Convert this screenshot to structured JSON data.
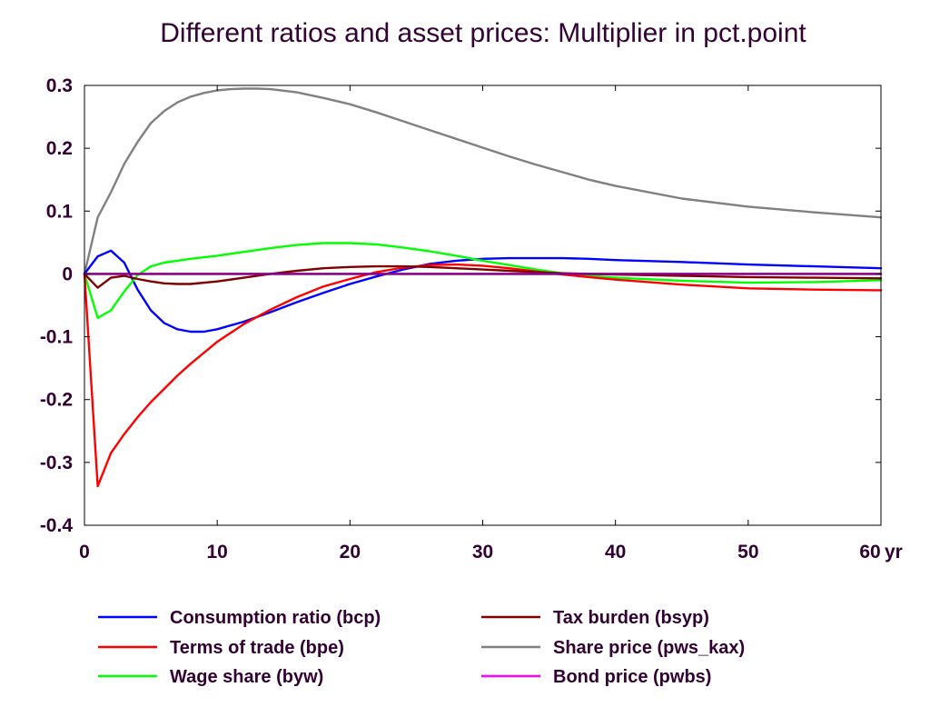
{
  "chart_data": {
    "type": "line",
    "title": "Different ratios and asset prices: Multiplier in pct.point",
    "xlabel": "",
    "ylabel": "",
    "x_unit_label": "yr",
    "xlim": [
      0,
      60
    ],
    "ylim": [
      -0.4,
      0.3
    ],
    "x_ticks": [
      0,
      10,
      20,
      30,
      40,
      50,
      60
    ],
    "x_tick_labels": [
      "0",
      "10",
      "20",
      "30",
      "40",
      "50",
      "60"
    ],
    "y_ticks": [
      0.3,
      0.2,
      0.1,
      0,
      -0.1,
      -0.2,
      -0.3,
      -0.4
    ],
    "y_tick_labels": [
      "0.3",
      "0.2",
      "0.1",
      "0",
      "-0.1",
      "-0.2",
      "-0.3",
      "-0.4"
    ],
    "grid": false,
    "legend_position": "bottom",
    "series": [
      {
        "name": "Consumption ratio (bcp)",
        "color": "#0000ff",
        "x": [
          0,
          1,
          2,
          3,
          4,
          5,
          6,
          7,
          8,
          9,
          10,
          12,
          14,
          16,
          18,
          20,
          22,
          24,
          26,
          28,
          30,
          32,
          34,
          36,
          38,
          40,
          45,
          50,
          55,
          60
        ],
        "y": [
          0,
          0.028,
          0.037,
          0.018,
          -0.025,
          -0.058,
          -0.078,
          -0.088,
          -0.092,
          -0.092,
          -0.088,
          -0.076,
          -0.061,
          -0.045,
          -0.03,
          -0.016,
          -0.004,
          0.007,
          0.016,
          0.021,
          0.024,
          0.025,
          0.025,
          0.025,
          0.024,
          0.022,
          0.019,
          0.015,
          0.012,
          0.009
        ]
      },
      {
        "name": "Terms of trade (bpe)",
        "color": "#ff0000",
        "x": [
          0,
          1,
          2,
          3,
          4,
          5,
          6,
          7,
          8,
          10,
          12,
          14,
          16,
          18,
          20,
          22,
          24,
          26,
          28,
          30,
          32,
          34,
          36,
          38,
          40,
          45,
          50,
          55,
          60
        ],
        "y": [
          0,
          -0.338,
          -0.285,
          -0.255,
          -0.228,
          -0.204,
          -0.183,
          -0.162,
          -0.143,
          -0.108,
          -0.08,
          -0.057,
          -0.037,
          -0.02,
          -0.008,
          0.003,
          0.01,
          0.014,
          0.015,
          0.013,
          0.009,
          0.004,
          -0.001,
          -0.005,
          -0.009,
          -0.017,
          -0.023,
          -0.025,
          -0.026
        ]
      },
      {
        "name": "Wage share (byw)",
        "color": "#00ff00",
        "x": [
          0,
          1,
          2,
          3,
          4,
          5,
          6,
          7,
          8,
          10,
          12,
          14,
          16,
          18,
          20,
          22,
          24,
          26,
          28,
          30,
          32,
          34,
          36,
          38,
          40,
          45,
          50,
          55,
          60
        ],
        "y": [
          0,
          -0.07,
          -0.058,
          -0.028,
          -0.002,
          0.012,
          0.018,
          0.021,
          0.024,
          0.029,
          0.035,
          0.041,
          0.046,
          0.049,
          0.049,
          0.047,
          0.042,
          0.036,
          0.029,
          0.021,
          0.014,
          0.007,
          0.001,
          -0.003,
          -0.006,
          -0.011,
          -0.014,
          -0.013,
          -0.01
        ]
      },
      {
        "name": "Tax burden (bsyp)",
        "color": "#800000",
        "x": [
          0,
          1,
          2,
          3,
          4,
          5,
          6,
          7,
          8,
          10,
          12,
          14,
          16,
          18,
          20,
          22,
          24,
          26,
          28,
          30,
          32,
          34,
          36,
          38,
          40,
          45,
          50,
          55,
          60
        ],
        "y": [
          0,
          -0.022,
          -0.006,
          -0.003,
          -0.008,
          -0.012,
          -0.015,
          -0.016,
          -0.016,
          -0.012,
          -0.006,
          0,
          0.005,
          0.009,
          0.011,
          0.012,
          0.012,
          0.011,
          0.009,
          0.007,
          0.005,
          0.003,
          0.001,
          0,
          -0.001,
          -0.003,
          -0.005,
          -0.006,
          -0.007
        ]
      },
      {
        "name": "Share price (pws_kax)",
        "color": "#808080",
        "x": [
          0,
          1,
          2,
          3,
          4,
          5,
          6,
          7,
          8,
          9,
          10,
          11,
          12,
          13,
          14,
          16,
          18,
          20,
          22,
          24,
          26,
          28,
          30,
          32,
          34,
          36,
          38,
          40,
          45,
          50,
          55,
          60
        ],
        "y": [
          0,
          0.09,
          0.13,
          0.175,
          0.21,
          0.24,
          0.259,
          0.273,
          0.282,
          0.288,
          0.292,
          0.294,
          0.295,
          0.295,
          0.294,
          0.289,
          0.28,
          0.27,
          0.257,
          0.243,
          0.229,
          0.215,
          0.201,
          0.187,
          0.174,
          0.162,
          0.15,
          0.14,
          0.12,
          0.107,
          0.098,
          0.09
        ]
      },
      {
        "name": "Bond price (pwbs)",
        "color": "#ff00ff",
        "x": [
          0,
          60
        ],
        "y": [
          0,
          0
        ]
      },
      {
        "name": "",
        "color": "#800080",
        "x": [
          0,
          60
        ],
        "y": [
          0,
          0
        ]
      }
    ],
    "legend_order": [
      0,
      3,
      1,
      4,
      2,
      5
    ]
  }
}
